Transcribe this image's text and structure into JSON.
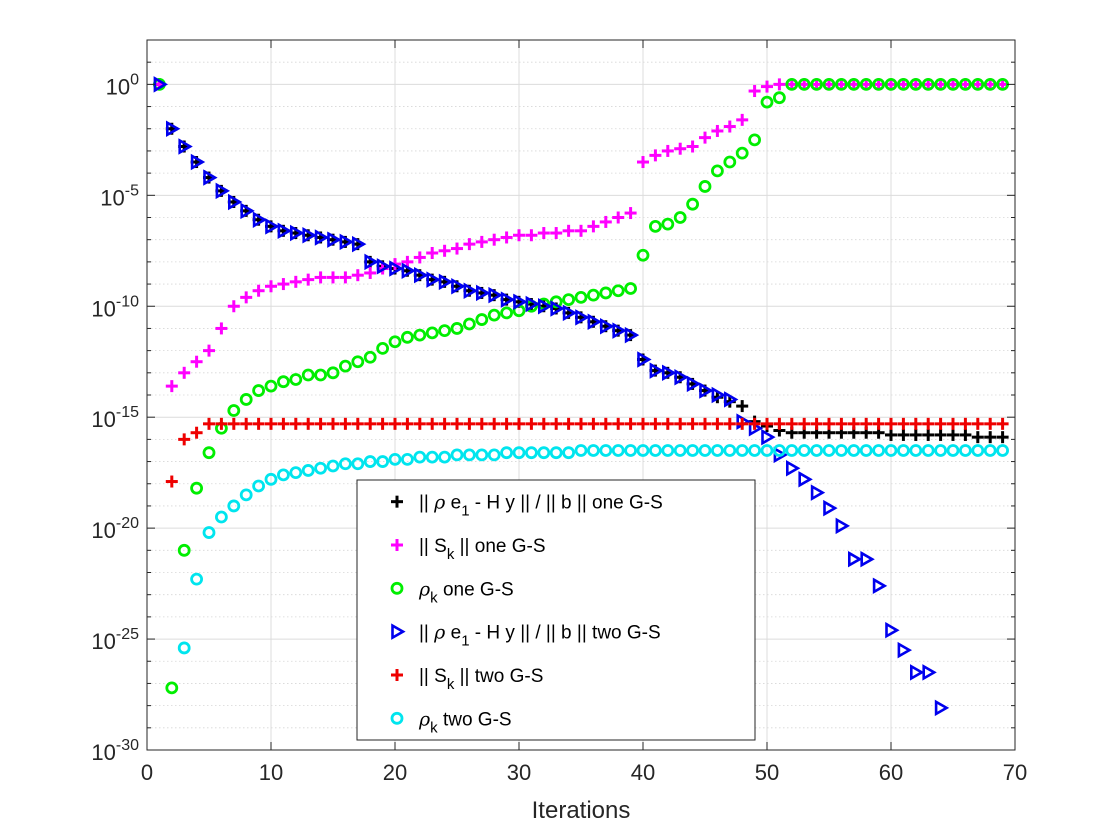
{
  "chart_data": {
    "type": "scatter",
    "xlabel": "Iterations",
    "ylabel": "",
    "yscale": "log",
    "xlim": [
      0,
      70
    ],
    "ylim_exp": [
      -30,
      2
    ],
    "xticks": [
      0,
      10,
      20,
      30,
      40,
      50,
      60,
      70
    ],
    "xtick_labels": [
      "0",
      "10",
      "20",
      "30",
      "40",
      "50",
      "60",
      "70"
    ],
    "ytick_exps": [
      0,
      -5,
      -10,
      -15,
      -20,
      -25,
      -30
    ],
    "ytick_labels": [
      {
        "base": "10",
        "exp": "0"
      },
      {
        "base": "10",
        "exp": "-5"
      },
      {
        "base": "10",
        "exp": "-10"
      },
      {
        "base": "10",
        "exp": "-15"
      },
      {
        "base": "10",
        "exp": "-20"
      },
      {
        "base": "10",
        "exp": "-25"
      },
      {
        "base": "10",
        "exp": "-30"
      }
    ],
    "grid": true,
    "legend_position": "bottom-center",
    "series": [
      {
        "name": "residual-one-gs",
        "marker": "plus",
        "color": "#000000",
        "legend_parts": [
          {
            "t": "|| "
          },
          {
            "t": "ρ",
            "it": true
          },
          {
            "t": " e"
          },
          {
            "t": "1",
            "sub": true
          },
          {
            "t": " - H y || / || b || one G-S"
          }
        ],
        "x": [
          1,
          2,
          3,
          4,
          5,
          6,
          7,
          8,
          9,
          10,
          11,
          12,
          13,
          14,
          15,
          16,
          17,
          18,
          19,
          20,
          21,
          22,
          23,
          24,
          25,
          26,
          27,
          28,
          29,
          30,
          31,
          32,
          33,
          34,
          35,
          36,
          37,
          38,
          39,
          40,
          41,
          42,
          43,
          44,
          45,
          46,
          47,
          48,
          49,
          50,
          51,
          52,
          53,
          54,
          55,
          56,
          57,
          58,
          59,
          60,
          61,
          62,
          63,
          64,
          65,
          66,
          67,
          68,
          69
        ],
        "log10y": [
          0,
          -2,
          -2.8,
          -3.5,
          -4.2,
          -4.8,
          -5.3,
          -5.7,
          -6.1,
          -6.4,
          -6.6,
          -6.7,
          -6.8,
          -6.9,
          -7,
          -7.1,
          -7.2,
          -8,
          -8.2,
          -8.3,
          -8.4,
          -8.6,
          -8.8,
          -8.9,
          -9.1,
          -9.3,
          -9.4,
          -9.5,
          -9.7,
          -9.8,
          -9.9,
          -10,
          -10.1,
          -10.3,
          -10.5,
          -10.7,
          -10.9,
          -11.1,
          -11.3,
          -12.4,
          -12.9,
          -13,
          -13.2,
          -13.5,
          -13.8,
          -14.1,
          -14.3,
          -14.5,
          -15.2,
          -15.4,
          -15.6,
          -15.7,
          -15.7,
          -15.7,
          -15.7,
          -15.7,
          -15.7,
          -15.7,
          -15.7,
          -15.8,
          -15.8,
          -15.8,
          -15.8,
          -15.8,
          -15.8,
          -15.8,
          -15.9,
          -15.9,
          -15.9
        ]
      },
      {
        "name": "sk-one-gs",
        "marker": "plus",
        "color": "#ff00ff",
        "legend_parts": [
          {
            "t": "|| S"
          },
          {
            "t": "k",
            "sub": true
          },
          {
            "t": " || one G-S"
          }
        ],
        "x": [
          1,
          2,
          3,
          4,
          5,
          6,
          7,
          8,
          9,
          10,
          11,
          12,
          13,
          14,
          15,
          16,
          17,
          18,
          19,
          20,
          21,
          22,
          23,
          24,
          25,
          26,
          27,
          28,
          29,
          30,
          31,
          32,
          33,
          34,
          35,
          36,
          37,
          38,
          39,
          40,
          41,
          42,
          43,
          44,
          45,
          46,
          47,
          48,
          49,
          50,
          51,
          52,
          53,
          54,
          55,
          56,
          57,
          58,
          59,
          60,
          61,
          62,
          63,
          64,
          65,
          66,
          67,
          68,
          69
        ],
        "log10y": [
          0,
          -13.6,
          -13,
          -12.5,
          -12,
          -11,
          -10,
          -9.6,
          -9.3,
          -9.1,
          -9,
          -8.9,
          -8.8,
          -8.7,
          -8.7,
          -8.7,
          -8.6,
          -8.5,
          -8.3,
          -8.1,
          -8,
          -7.8,
          -7.6,
          -7.5,
          -7.4,
          -7.2,
          -7.1,
          -7,
          -6.9,
          -6.8,
          -6.8,
          -6.7,
          -6.7,
          -6.6,
          -6.6,
          -6.4,
          -6.2,
          -6,
          -5.8,
          -3.5,
          -3.2,
          -3,
          -2.9,
          -2.8,
          -2.4,
          -2.1,
          -1.9,
          -1.6,
          -0.3,
          -0.1,
          0,
          0,
          0,
          0,
          0,
          0,
          0,
          0,
          0,
          0,
          0,
          0,
          0,
          0,
          0,
          0,
          0,
          0,
          0
        ]
      },
      {
        "name": "rho-one-gs",
        "marker": "circle",
        "color": "#00ee00",
        "legend_parts": [
          {
            "t": "ρ",
            "it": true
          },
          {
            "t": "k",
            "sub": true
          },
          {
            "t": " one G-S"
          }
        ],
        "x": [
          1,
          2,
          3,
          4,
          5,
          6,
          7,
          8,
          9,
          10,
          11,
          12,
          13,
          14,
          15,
          16,
          17,
          18,
          19,
          20,
          21,
          22,
          23,
          24,
          25,
          26,
          27,
          28,
          29,
          30,
          31,
          32,
          33,
          34,
          35,
          36,
          37,
          38,
          39,
          40,
          41,
          42,
          43,
          44,
          45,
          46,
          47,
          48,
          49,
          50,
          51,
          52,
          53,
          54,
          55,
          56,
          57,
          58,
          59,
          60,
          61,
          62,
          63,
          64,
          65,
          66,
          67,
          68,
          69
        ],
        "log10y": [
          0,
          -27.2,
          -21,
          -18.2,
          -16.6,
          -15.5,
          -14.7,
          -14.2,
          -13.8,
          -13.6,
          -13.4,
          -13.3,
          -13.1,
          -13.1,
          -13,
          -12.7,
          -12.5,
          -12.3,
          -11.9,
          -11.6,
          -11.4,
          -11.3,
          -11.2,
          -11.1,
          -11,
          -10.8,
          -10.6,
          -10.4,
          -10.3,
          -10.2,
          -10,
          -9.9,
          -9.8,
          -9.7,
          -9.6,
          -9.5,
          -9.4,
          -9.3,
          -9.2,
          -7.7,
          -6.4,
          -6.3,
          -6,
          -5.4,
          -4.6,
          -3.9,
          -3.5,
          -3.1,
          -2.5,
          -0.8,
          -0.6,
          0,
          0,
          0,
          0,
          0,
          0,
          0,
          0,
          0,
          0,
          0,
          0,
          0,
          0,
          0,
          0,
          0,
          0
        ]
      },
      {
        "name": "residual-two-gs",
        "marker": "triangle-right",
        "color": "#0000ee",
        "legend_parts": [
          {
            "t": "|| "
          },
          {
            "t": "ρ",
            "it": true
          },
          {
            "t": " e"
          },
          {
            "t": "1",
            "sub": true
          },
          {
            "t": " - H y || / || b || two G-S"
          }
        ],
        "x": [
          1,
          2,
          3,
          4,
          5,
          6,
          7,
          8,
          9,
          10,
          11,
          12,
          13,
          14,
          15,
          16,
          17,
          18,
          19,
          20,
          21,
          22,
          23,
          24,
          25,
          26,
          27,
          28,
          29,
          30,
          31,
          32,
          33,
          34,
          35,
          36,
          37,
          38,
          39,
          40,
          41,
          42,
          43,
          44,
          45,
          46,
          47,
          48,
          49,
          50,
          51,
          52,
          53,
          54,
          55,
          56,
          57,
          58,
          59,
          60,
          61,
          62,
          63,
          64
        ],
        "log10y": [
          0,
          -2,
          -2.8,
          -3.5,
          -4.2,
          -4.8,
          -5.3,
          -5.7,
          -6.1,
          -6.4,
          -6.6,
          -6.7,
          -6.8,
          -6.9,
          -7,
          -7.1,
          -7.2,
          -8,
          -8.2,
          -8.3,
          -8.4,
          -8.6,
          -8.8,
          -8.9,
          -9.1,
          -9.3,
          -9.4,
          -9.5,
          -9.7,
          -9.8,
          -9.9,
          -10,
          -10.1,
          -10.3,
          -10.5,
          -10.7,
          -10.9,
          -11.1,
          -11.3,
          -12.4,
          -12.9,
          -13,
          -13.2,
          -13.5,
          -13.8,
          -14,
          -14.2,
          -15.2,
          -15.5,
          -15.9,
          -16.7,
          -17.3,
          -17.8,
          -18.4,
          -19.1,
          -19.9,
          -21.4,
          -21.4,
          -22.6,
          -24.6,
          -25.5,
          -26.5,
          -26.5,
          -28.1
        ]
      },
      {
        "name": "sk-two-gs",
        "marker": "plus",
        "color": "#ee0000",
        "legend_parts": [
          {
            "t": "|| S"
          },
          {
            "t": "k",
            "sub": true
          },
          {
            "t": " || two G-S"
          }
        ],
        "x": [
          2,
          3,
          4,
          5,
          6,
          7,
          8,
          9,
          10,
          11,
          12,
          13,
          14,
          15,
          16,
          17,
          18,
          19,
          20,
          21,
          22,
          23,
          24,
          25,
          26,
          27,
          28,
          29,
          30,
          31,
          32,
          33,
          34,
          35,
          36,
          37,
          38,
          39,
          40,
          41,
          42,
          43,
          44,
          45,
          46,
          47,
          48,
          49,
          50,
          51,
          52,
          53,
          54,
          55,
          56,
          57,
          58,
          59,
          60,
          61,
          62,
          63,
          64,
          65,
          66,
          67,
          68,
          69
        ],
        "log10y": [
          -17.9,
          -16,
          -15.7,
          -15.3,
          -15.3,
          -15.3,
          -15.3,
          -15.3,
          -15.3,
          -15.3,
          -15.3,
          -15.3,
          -15.3,
          -15.3,
          -15.3,
          -15.3,
          -15.3,
          -15.3,
          -15.3,
          -15.3,
          -15.3,
          -15.3,
          -15.3,
          -15.3,
          -15.3,
          -15.3,
          -15.3,
          -15.3,
          -15.3,
          -15.3,
          -15.3,
          -15.3,
          -15.3,
          -15.3,
          -15.3,
          -15.3,
          -15.3,
          -15.3,
          -15.3,
          -15.3,
          -15.3,
          -15.3,
          -15.3,
          -15.3,
          -15.3,
          -15.3,
          -15.3,
          -15.3,
          -15.3,
          -15.3,
          -15.3,
          -15.3,
          -15.3,
          -15.3,
          -15.3,
          -15.3,
          -15.3,
          -15.3,
          -15.3,
          -15.3,
          -15.3,
          -15.3,
          -15.3,
          -15.3,
          -15.3,
          -15.3,
          -15.3,
          -15.3
        ]
      },
      {
        "name": "rho-two-gs",
        "marker": "circle",
        "color": "#00e5ee",
        "legend_parts": [
          {
            "t": "ρ",
            "it": true
          },
          {
            "t": "k",
            "sub": true
          },
          {
            "t": " two G-S"
          }
        ],
        "x": [
          3,
          4,
          5,
          6,
          7,
          8,
          9,
          10,
          11,
          12,
          13,
          14,
          15,
          16,
          17,
          18,
          19,
          20,
          21,
          22,
          23,
          24,
          25,
          26,
          27,
          28,
          29,
          30,
          31,
          32,
          33,
          34,
          35,
          36,
          37,
          38,
          39,
          40,
          41,
          42,
          43,
          44,
          45,
          46,
          47,
          48,
          49,
          50,
          51,
          52,
          53,
          54,
          55,
          56,
          57,
          58,
          59,
          60,
          61,
          62,
          63,
          64,
          65,
          66,
          67,
          68,
          69
        ],
        "log10y": [
          -25.4,
          -22.3,
          -20.2,
          -19.5,
          -19,
          -18.5,
          -18.1,
          -17.8,
          -17.6,
          -17.5,
          -17.4,
          -17.3,
          -17.2,
          -17.1,
          -17.1,
          -17,
          -17,
          -16.9,
          -16.9,
          -16.8,
          -16.8,
          -16.8,
          -16.7,
          -16.7,
          -16.7,
          -16.7,
          -16.6,
          -16.6,
          -16.6,
          -16.6,
          -16.6,
          -16.6,
          -16.5,
          -16.5,
          -16.5,
          -16.5,
          -16.5,
          -16.5,
          -16.5,
          -16.5,
          -16.5,
          -16.5,
          -16.5,
          -16.5,
          -16.5,
          -16.5,
          -16.5,
          -16.5,
          -16.5,
          -16.5,
          -16.5,
          -16.5,
          -16.5,
          -16.5,
          -16.5,
          -16.5,
          -16.5,
          -16.5,
          -16.5,
          -16.5,
          -16.5,
          -16.5,
          -16.5,
          -16.5,
          -16.5,
          -16.5,
          -16.5
        ]
      }
    ]
  }
}
